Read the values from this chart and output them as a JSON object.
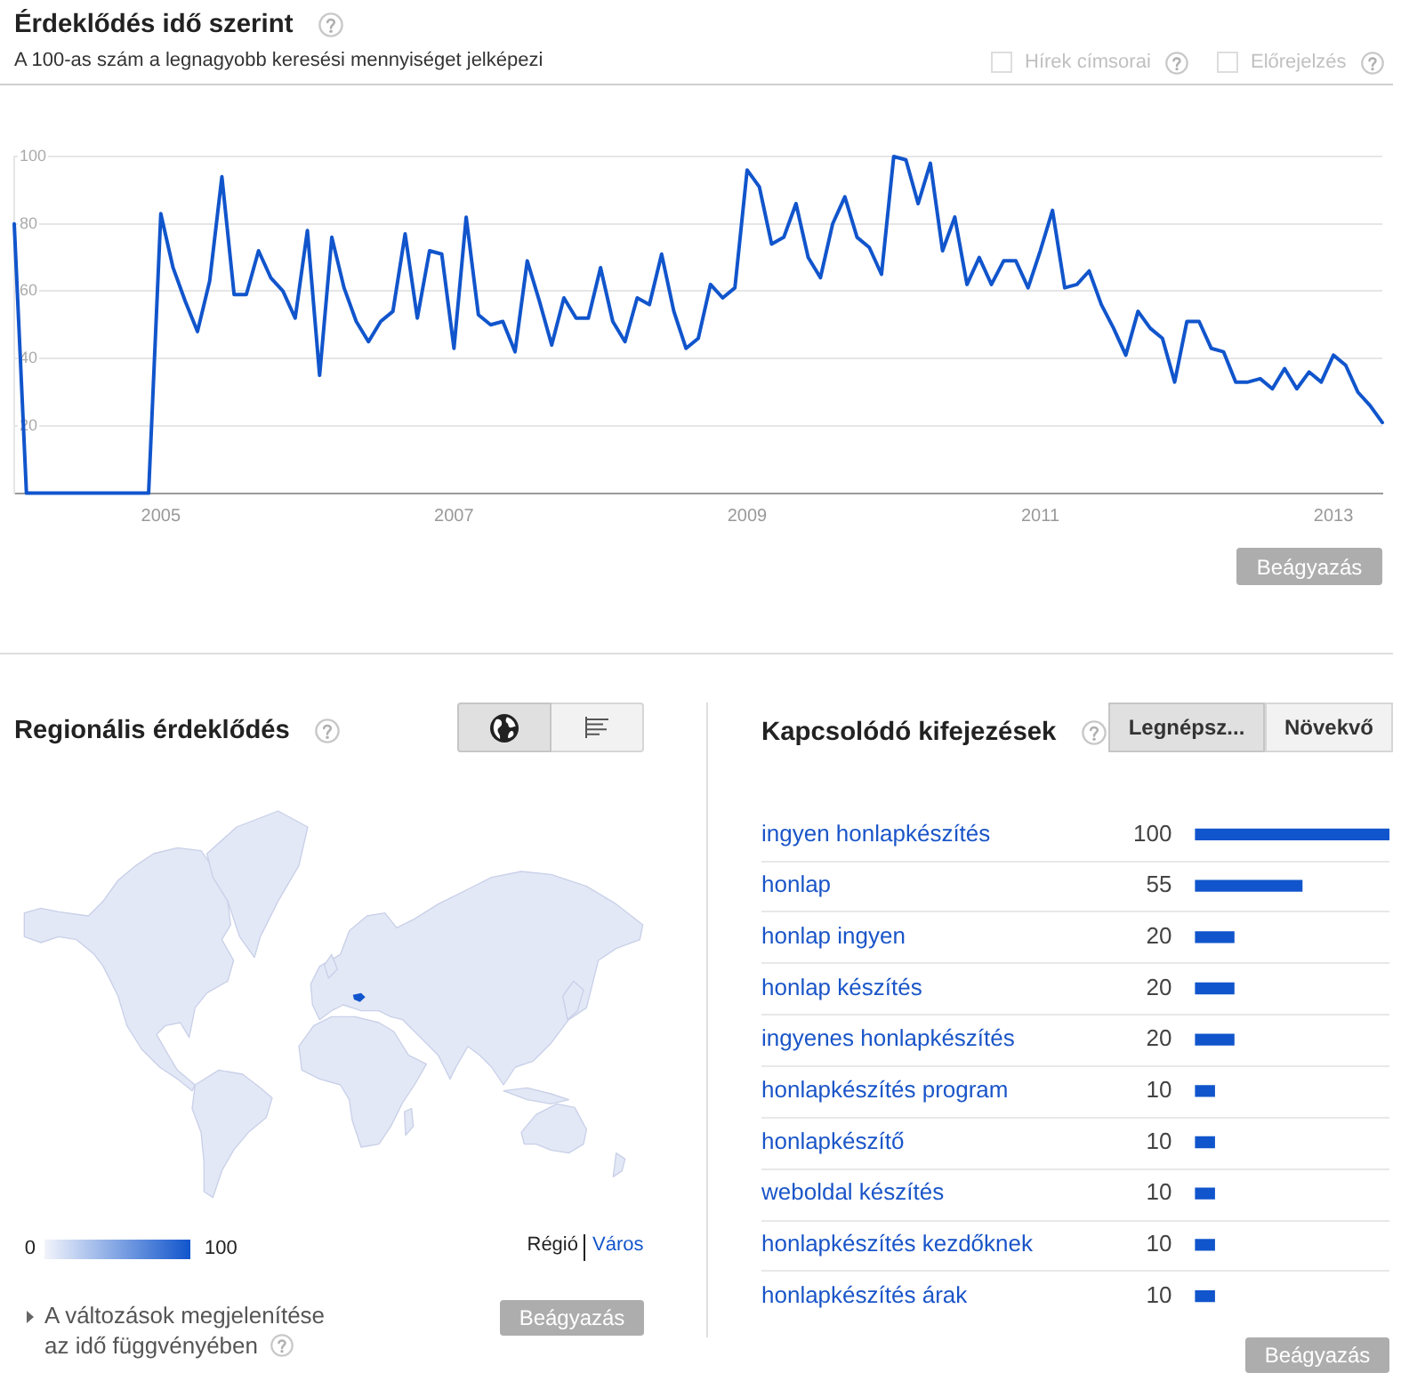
{
  "chart_data": [
    {
      "type": "line",
      "title": "Érdeklődés idő szerint",
      "subtitle": "A 100-as szám a legnagyobb keresési mennyiséget jelképezi",
      "x": [
        "2004-01",
        "2004-02",
        "2004-03",
        "2004-04",
        "2004-05",
        "2004-06",
        "2004-07",
        "2004-08",
        "2004-09",
        "2004-10",
        "2004-11",
        "2004-12",
        "2005-01",
        "2005-02",
        "2005-03",
        "2005-04",
        "2005-05",
        "2005-06",
        "2005-07",
        "2005-08",
        "2005-09",
        "2005-10",
        "2005-11",
        "2005-12",
        "2006-01",
        "2006-02",
        "2006-03",
        "2006-04",
        "2006-05",
        "2006-06",
        "2006-07",
        "2006-08",
        "2006-09",
        "2006-10",
        "2006-11",
        "2006-12",
        "2007-01",
        "2007-02",
        "2007-03",
        "2007-04",
        "2007-05",
        "2007-06",
        "2007-07",
        "2007-08",
        "2007-09",
        "2007-10",
        "2007-11",
        "2007-12",
        "2008-01",
        "2008-02",
        "2008-03",
        "2008-04",
        "2008-05",
        "2008-06",
        "2008-07",
        "2008-08",
        "2008-09",
        "2008-10",
        "2008-11",
        "2008-12",
        "2009-01",
        "2009-02",
        "2009-03",
        "2009-04",
        "2009-05",
        "2009-06",
        "2009-07",
        "2009-08",
        "2009-09",
        "2009-10",
        "2009-11",
        "2009-12",
        "2010-01",
        "2010-02",
        "2010-03",
        "2010-04",
        "2010-05",
        "2010-06",
        "2010-07",
        "2010-08",
        "2010-09",
        "2010-10",
        "2010-11",
        "2010-12",
        "2011-01",
        "2011-02",
        "2011-03",
        "2011-04",
        "2011-05",
        "2011-06",
        "2011-07",
        "2011-08",
        "2011-09",
        "2011-10",
        "2011-11",
        "2011-12",
        "2012-01",
        "2012-02",
        "2012-03",
        "2012-04",
        "2012-05",
        "2012-06",
        "2012-07",
        "2012-08",
        "2012-09",
        "2012-10",
        "2012-11",
        "2012-12",
        "2013-01",
        "2013-02",
        "2013-03",
        "2013-04",
        "2013-05"
      ],
      "values": [
        80,
        0,
        0,
        0,
        0,
        0,
        0,
        0,
        0,
        0,
        0,
        0,
        83,
        67,
        57,
        48,
        63,
        94,
        59,
        59,
        72,
        64,
        60,
        52,
        78,
        35,
        76,
        61,
        51,
        45,
        51,
        54,
        77,
        52,
        72,
        71,
        43,
        82,
        53,
        50,
        51,
        42,
        69,
        57,
        44,
        58,
        52,
        52,
        67,
        51,
        45,
        58,
        56,
        71,
        54,
        43,
        46,
        62,
        58,
        61,
        96,
        91,
        74,
        76,
        86,
        70,
        64,
        80,
        88,
        76,
        73,
        65,
        100,
        99,
        86,
        98,
        72,
        82,
        62,
        70,
        62,
        69,
        69,
        61,
        72,
        84,
        61,
        62,
        66,
        56,
        49,
        41,
        54,
        49,
        46,
        33,
        51,
        51,
        43,
        42,
        33,
        33,
        34,
        31,
        37,
        31,
        36,
        33,
        41,
        38,
        30,
        26,
        21
      ],
      "color": "#1155cc",
      "xlim": [
        "2004-01",
        "2013-05"
      ],
      "xticks": [
        "2005",
        "2007",
        "2009",
        "2011",
        "2013"
      ],
      "ylim": [
        0,
        100
      ],
      "yticks": [
        20,
        40,
        60,
        80,
        100
      ],
      "grid": "y",
      "marker": "none",
      "annotations": [
        "Hírek címsorai",
        "Előrejelzés",
        "Beágyazás"
      ]
    },
    {
      "type": "other",
      "title": "Regionális érdeklődés",
      "annotations": [
        "0",
        "100",
        "Régió",
        "Város",
        "A változások megjelenítése az idő függvényében",
        "Beágyazás"
      ]
    },
    {
      "type": "bar",
      "orientation": "horizontal",
      "title": "Kapcsolódó kifejezések",
      "categories": [
        "ingyen honlapkészítés",
        "honlap",
        "honlap ingyen",
        "honlap készítés",
        "ingyenes honlapkészítés",
        "honlapkészítés program",
        "honlapkészítő",
        "weboldal készítés",
        "honlapkészítés kezdőknek",
        "honlapkészítés árak"
      ],
      "values": [
        100,
        55,
        20,
        20,
        20,
        10,
        10,
        10,
        10,
        10
      ],
      "color": "#1155cc",
      "data_labels": true,
      "grid": "y",
      "annotations": [
        "Legnépsz...",
        "Növekvő",
        "Beágyazás"
      ]
    }
  ]
}
